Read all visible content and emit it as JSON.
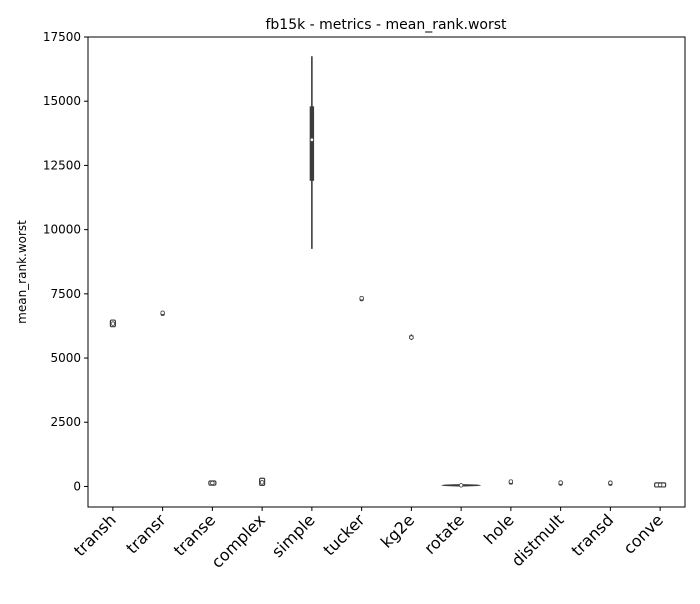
{
  "chart_data": {
    "type": "violin",
    "title": "fb15k - metrics - mean_rank.worst",
    "xlabel": "",
    "ylabel": "mean_rank.worst",
    "ylim": [
      -800,
      17500
    ],
    "yticks": [
      0,
      2500,
      5000,
      7500,
      10000,
      12500,
      15000,
      17500
    ],
    "ytick_labels": [
      "0",
      "2500",
      "5000",
      "7500",
      "10000",
      "12500",
      "15000",
      "17500"
    ],
    "grid": false,
    "categories": [
      "transh",
      "transr",
      "transe",
      "complex",
      "simple",
      "tucker",
      "kg2e",
      "rotate",
      "hole",
      "distmult",
      "transd",
      "conve"
    ],
    "distributions": [
      {
        "model": "transh",
        "min": 6280,
        "q1": 6300,
        "median": 6340,
        "q3": 6390,
        "max": 6420,
        "width": 0.1
      },
      {
        "model": "transr",
        "min": 6760,
        "q1": 6760,
        "median": 6760,
        "q3": 6760,
        "max": 6760,
        "width": 0.06
      },
      {
        "model": "transe",
        "min": 110,
        "q1": 120,
        "median": 135,
        "q3": 145,
        "max": 155,
        "width": 0.14
      },
      {
        "model": "complex",
        "min": 100,
        "q1": 130,
        "median": 160,
        "q3": 230,
        "max": 260,
        "width": 0.1
      },
      {
        "model": "simple",
        "min": 9250,
        "q1": 11900,
        "median": 13500,
        "q3": 14800,
        "max": 16750,
        "width": 0.1
      },
      {
        "model": "tucker",
        "min": 7330,
        "q1": 7330,
        "median": 7330,
        "q3": 7330,
        "max": 7330,
        "width": 0.06
      },
      {
        "model": "kg2e",
        "min": 5700,
        "q1": 5740,
        "median": 5800,
        "q3": 5880,
        "max": 5920,
        "width": 0.12
      },
      {
        "model": "rotate",
        "min": 25,
        "q1": 35,
        "median": 45,
        "q3": 55,
        "max": 65,
        "width": 0.8
      },
      {
        "model": "hole",
        "min": 190,
        "q1": 190,
        "median": 190,
        "q3": 190,
        "max": 190,
        "width": 0.06
      },
      {
        "model": "distmult",
        "min": 150,
        "q1": 150,
        "median": 150,
        "q3": 150,
        "max": 150,
        "width": 0.06
      },
      {
        "model": "transd",
        "min": 145,
        "q1": 145,
        "median": 145,
        "q3": 145,
        "max": 145,
        "width": 0.06
      },
      {
        "model": "conve",
        "min": 40,
        "q1": 50,
        "median": 60,
        "q3": 70,
        "max": 80,
        "width": 0.22
      }
    ],
    "colors": {
      "body": "#3c3c3c",
      "median": "#ffffff",
      "axis": "#000000"
    }
  }
}
